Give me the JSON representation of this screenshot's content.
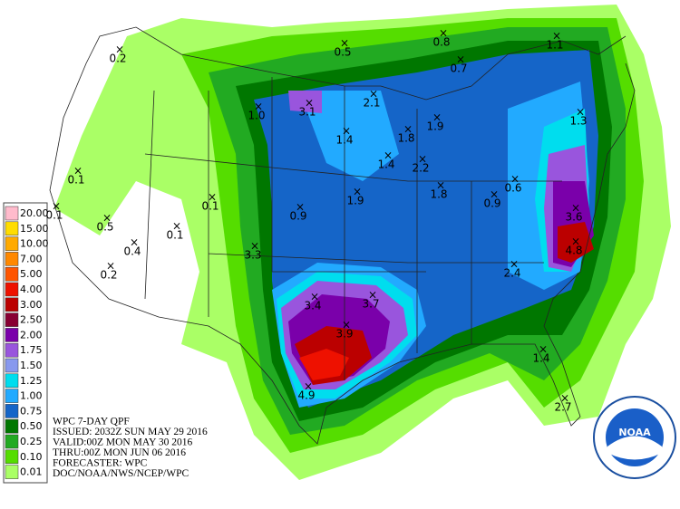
{
  "legend": {
    "labels": [
      "20.00",
      "15.00",
      "10.00",
      "7.00",
      "5.00",
      "4.00",
      "3.00",
      "2.50",
      "2.00",
      "1.75",
      "1.50",
      "1.25",
      "1.00",
      "0.75",
      "0.50",
      "0.25",
      "0.10",
      "0.01"
    ],
    "colors": [
      "#ffbbcc",
      "#ffdd00",
      "#ffaa00",
      "#ff8800",
      "#ff5500",
      "#ee1100",
      "#bb0000",
      "#880033",
      "#7a00aa",
      "#9955dd",
      "#8899ee",
      "#00ddee",
      "#22aaff",
      "#1565c8",
      "#007700",
      "#22aa22",
      "#55dd00",
      "#aaff66"
    ]
  },
  "info": [
    "WPC 7-DAY QPF",
    "ISSUED: 2032Z SUN MAY 29 2016",
    "VALID:00Z MON MAY 30 2016",
    "THRU:00Z MON JUN 06 2016",
    "FORECASTER: WPC",
    "DOC/NOAA/NWS/NCEP/WPC"
  ],
  "logo": "NOAA",
  "points": [
    "0.2",
    "0.5",
    "0.8",
    "1.1",
    "0.7",
    "2.1",
    "3.1",
    "1.0",
    "1.4",
    "1.8",
    "1.9",
    "2.2",
    "1.4",
    "1.8",
    "1.3",
    "0.1",
    "0.1",
    "0.5",
    "0.1",
    "0.9",
    "1.9",
    "0.9",
    "0.6",
    "3.6",
    "4.8",
    "0.1",
    "0.4",
    "0.2",
    "3.3",
    "2.4",
    "3.4",
    "3.7",
    "3.9",
    "4.9",
    "1.4",
    "2.7"
  ]
}
